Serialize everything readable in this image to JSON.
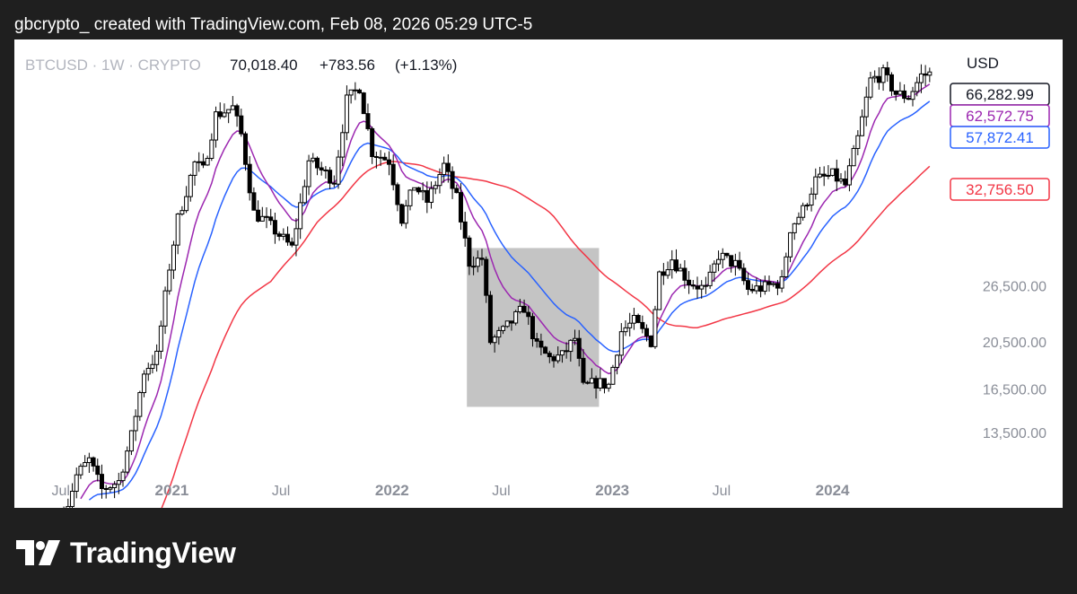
{
  "header": {
    "caption": "gbcrypto_ created with TradingView.com, Feb 08, 2026 05:29 UTC-5"
  },
  "brand": {
    "name": "TradingView",
    "logo_icon": "tradingview-logo-icon"
  },
  "chart_data": {
    "type": "candlestick",
    "symbol_line": "BTCUSD · 1W · CRYPTO",
    "legend_values": [
      "70,018.40",
      "+783.56",
      "(+1.13%)"
    ],
    "currency": "USD",
    "scale": "log",
    "y_ticks": [
      {
        "value": 26500,
        "label": "26,500.00"
      },
      {
        "value": 20500,
        "label": "20,500.00"
      },
      {
        "value": 16500,
        "label": "16,500.00"
      },
      {
        "value": 13500,
        "label": "13,500.00"
      }
    ],
    "ylim": [
      11000,
      82000
    ],
    "x_ticks": [
      {
        "date": "2020-07-01",
        "label": "Jul",
        "bold": false
      },
      {
        "date": "2021-01-01",
        "label": "2021",
        "bold": true
      },
      {
        "date": "2021-07-01",
        "label": "Jul",
        "bold": false
      },
      {
        "date": "2022-01-01",
        "label": "2022",
        "bold": true
      },
      {
        "date": "2022-07-01",
        "label": "Jul",
        "bold": false
      },
      {
        "date": "2023-01-01",
        "label": "2023",
        "bold": true
      },
      {
        "date": "2023-07-01",
        "label": "Jul",
        "bold": false
      },
      {
        "date": "2024-01-01",
        "label": "2024",
        "bold": true
      }
    ],
    "xlim": [
      "2020-04-15",
      "2024-07-10"
    ],
    "price_badges": [
      {
        "label": "66,282.99",
        "value": 66282.99,
        "color": "#131722",
        "style": "outline"
      },
      {
        "label": "62,572.75",
        "value": 62572.75,
        "color": "#9c27b0",
        "style": "outline"
      },
      {
        "label": "57,872.41",
        "value": 57872.41,
        "color": "#2962ff",
        "style": "outline"
      },
      {
        "label": "32,756.50",
        "value": 32756.5,
        "color": "#f23645",
        "style": "outline"
      }
    ],
    "highlight_box": {
      "x_start": "2022-05-05",
      "x_end": "2022-12-10",
      "y_low": 15200,
      "y_high": 31500,
      "color": "#c4c4c4"
    },
    "colors": {
      "ema_short": "#9c27b0",
      "ema_mid": "#2962ff",
      "ma_long": "#f23645",
      "candles": "#000000"
    },
    "price_path": [
      [
        "2020-07-06",
        9200
      ],
      [
        "2020-07-27",
        11100
      ],
      [
        "2020-08-17",
        11900
      ],
      [
        "2020-09-07",
        10400
      ],
      [
        "2020-10-05",
        10800
      ],
      [
        "2020-10-26",
        13300
      ],
      [
        "2020-11-16",
        17900
      ],
      [
        "2020-12-07",
        19200
      ],
      [
        "2020-12-28",
        28900
      ],
      [
        "2021-01-11",
        36000
      ],
      [
        "2021-02-08",
        46500
      ],
      [
        "2021-02-22",
        45000
      ],
      [
        "2021-03-15",
        58000
      ],
      [
        "2021-04-12",
        60000
      ],
      [
        "2021-04-26",
        53000
      ],
      [
        "2021-05-17",
        37000
      ],
      [
        "2021-06-07",
        35500
      ],
      [
        "2021-07-19",
        31500
      ],
      [
        "2021-08-16",
        47000
      ],
      [
        "2021-09-06",
        45000
      ],
      [
        "2021-09-27",
        43000
      ],
      [
        "2021-10-18",
        62000
      ],
      [
        "2021-11-08",
        66000
      ],
      [
        "2021-11-29",
        49000
      ],
      [
        "2021-12-27",
        47000
      ],
      [
        "2022-01-17",
        36000
      ],
      [
        "2022-02-07",
        42000
      ],
      [
        "2022-02-28",
        39000
      ],
      [
        "2022-03-28",
        46000
      ],
      [
        "2022-04-18",
        39500
      ],
      [
        "2022-05-09",
        29500
      ],
      [
        "2022-05-30",
        30000
      ],
      [
        "2022-06-13",
        20500
      ],
      [
        "2022-07-04",
        21500
      ],
      [
        "2022-08-08",
        24000
      ],
      [
        "2022-08-29",
        20000
      ],
      [
        "2022-09-19",
        19000
      ],
      [
        "2022-10-10",
        19200
      ],
      [
        "2022-10-31",
        20800
      ],
      [
        "2022-11-14",
        16600
      ],
      [
        "2022-12-05",
        17000
      ],
      [
        "2022-12-26",
        16800
      ],
      [
        "2023-01-16",
        21500
      ],
      [
        "2023-02-06",
        22500
      ],
      [
        "2023-03-06",
        20500
      ],
      [
        "2023-03-20",
        28000
      ],
      [
        "2023-04-10",
        30000
      ],
      [
        "2023-05-08",
        27000
      ],
      [
        "2023-06-05",
        26000
      ],
      [
        "2023-06-26",
        30500
      ],
      [
        "2023-07-24",
        29200
      ],
      [
        "2023-08-14",
        26000
      ],
      [
        "2023-09-11",
        26300
      ],
      [
        "2023-10-09",
        27000
      ],
      [
        "2023-10-23",
        34500
      ],
      [
        "2023-11-13",
        37500
      ],
      [
        "2023-12-04",
        43000
      ],
      [
        "2024-01-01",
        44000
      ],
      [
        "2024-01-22",
        42000
      ],
      [
        "2024-02-12",
        52000
      ],
      [
        "2024-03-04",
        68000
      ],
      [
        "2024-03-25",
        70000
      ],
      [
        "2024-04-15",
        64000
      ],
      [
        "2024-05-06",
        63000
      ],
      [
        "2024-05-27",
        69500
      ],
      [
        "2024-06-10",
        70018
      ]
    ]
  }
}
